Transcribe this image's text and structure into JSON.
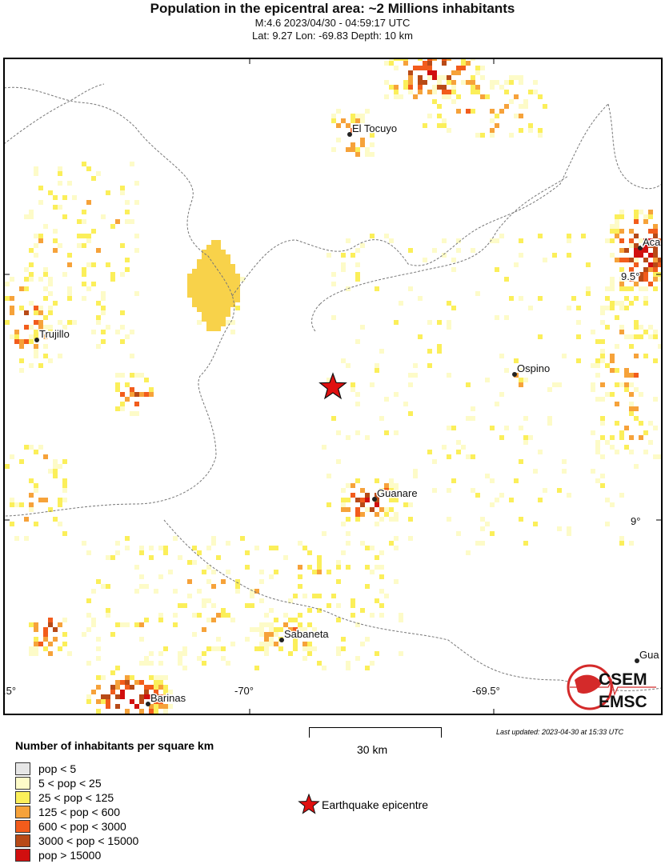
{
  "title": "Population in the epicentral area: ~2 Millions inhabitants",
  "subtitle": "M:4.6 2023/04/30 - 04:59:17 UTC",
  "location": "Lat: 9.27 Lon: -69.83 Depth: 10 km",
  "map": {
    "epicenter": {
      "lat": 9.27,
      "lon": -69.83
    },
    "lon_ticks": [
      {
        "label": ".5°"
      },
      {
        "label": "-70°"
      },
      {
        "label": "-69.5°"
      }
    ],
    "lat_ticks": [
      {
        "label": "9.5°"
      },
      {
        "label": "9°"
      }
    ],
    "cities": [
      {
        "name": "El Tocuyo"
      },
      {
        "name": "Aca"
      },
      {
        "name": "Trujillo"
      },
      {
        "name": "Ospino"
      },
      {
        "name": "Guanare"
      },
      {
        "name": "Sabaneta"
      },
      {
        "name": "Barinas"
      },
      {
        "name": "Gua"
      }
    ],
    "logo_text": [
      "CSEM",
      "EMSC"
    ]
  },
  "scale_bar": "30 km",
  "last_updated": "Last updated: 2023-04-30 at 15:33 UTC",
  "legend": {
    "title": "Number of inhabitants per square km",
    "items": [
      {
        "label": "pop < 5",
        "color": "#e6e6e6"
      },
      {
        "label": "5 < pop < 25",
        "color": "#fdfbc8"
      },
      {
        "label": "25 < pop < 125",
        "color": "#fbef5a"
      },
      {
        "label": "125 < pop < 600",
        "color": "#f6a23a"
      },
      {
        "label": "600 < pop < 3000",
        "color": "#f25c1c"
      },
      {
        "label": "3000 < pop < 15000",
        "color": "#b84a17"
      },
      {
        "label": "pop > 15000",
        "color": "#d10f0f"
      }
    ],
    "epicentre_label": "Earthquake epicentre"
  }
}
